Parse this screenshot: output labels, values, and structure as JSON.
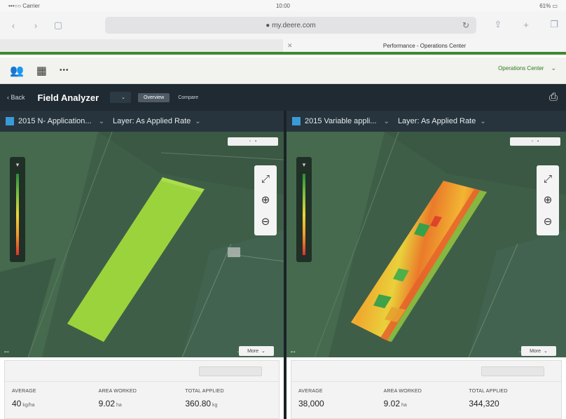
{
  "status_bar": {
    "carrier": "•••○○ Carrier",
    "time": "10:00",
    "battery": "61% ▭"
  },
  "safari": {
    "url": "● my.deere.com",
    "reload_icon": "reload-icon"
  },
  "tabs": [
    {
      "label": ""
    },
    {
      "label": "Performance - Operations Center"
    }
  ],
  "app_header": {
    "more_label": "•••",
    "org_label": "Operations Center"
  },
  "field_analyzer": {
    "back_label": "Back",
    "title": "Field Analyzer",
    "field_select": "",
    "modes": [
      {
        "label": "Overview"
      },
      {
        "label": "Compare"
      }
    ]
  },
  "panels": {
    "left": {
      "layer_name": "2015 N- Application...",
      "layer_type": "Layer: As Applied Rate",
      "swatch_color": "#3a9ad9",
      "more_label": "More",
      "stats": {
        "section_label": "",
        "button_label": "",
        "items": [
          {
            "label": "AVERAGE",
            "value": "40",
            "unit": "kg/ha"
          },
          {
            "label": "AREA WORKED",
            "value": "9.02",
            "unit": "ha"
          },
          {
            "label": "TOTAL APPLIED",
            "value": "360.80",
            "unit": "kg"
          }
        ]
      }
    },
    "right": {
      "layer_name": "2015 Variable appli...",
      "layer_type": "Layer: As Applied Rate",
      "swatch_color": "#3a9ad9",
      "more_label": "More",
      "stats": {
        "section_label": "",
        "button_label": "",
        "items": [
          {
            "label": "AVERAGE",
            "value": "38,000",
            "unit": ""
          },
          {
            "label": "AREA WORKED",
            "value": "9.02",
            "unit": "ha"
          },
          {
            "label": "TOTAL APPLIED",
            "value": "344,320",
            "unit": ""
          }
        ]
      }
    }
  },
  "colors": {
    "accent_green": "#3d8a2b",
    "uniform_rate": "#9bd33c",
    "rate_low": "#2b8c3a",
    "rate_mid": "#e8d63a",
    "rate_high": "#d9342b"
  }
}
